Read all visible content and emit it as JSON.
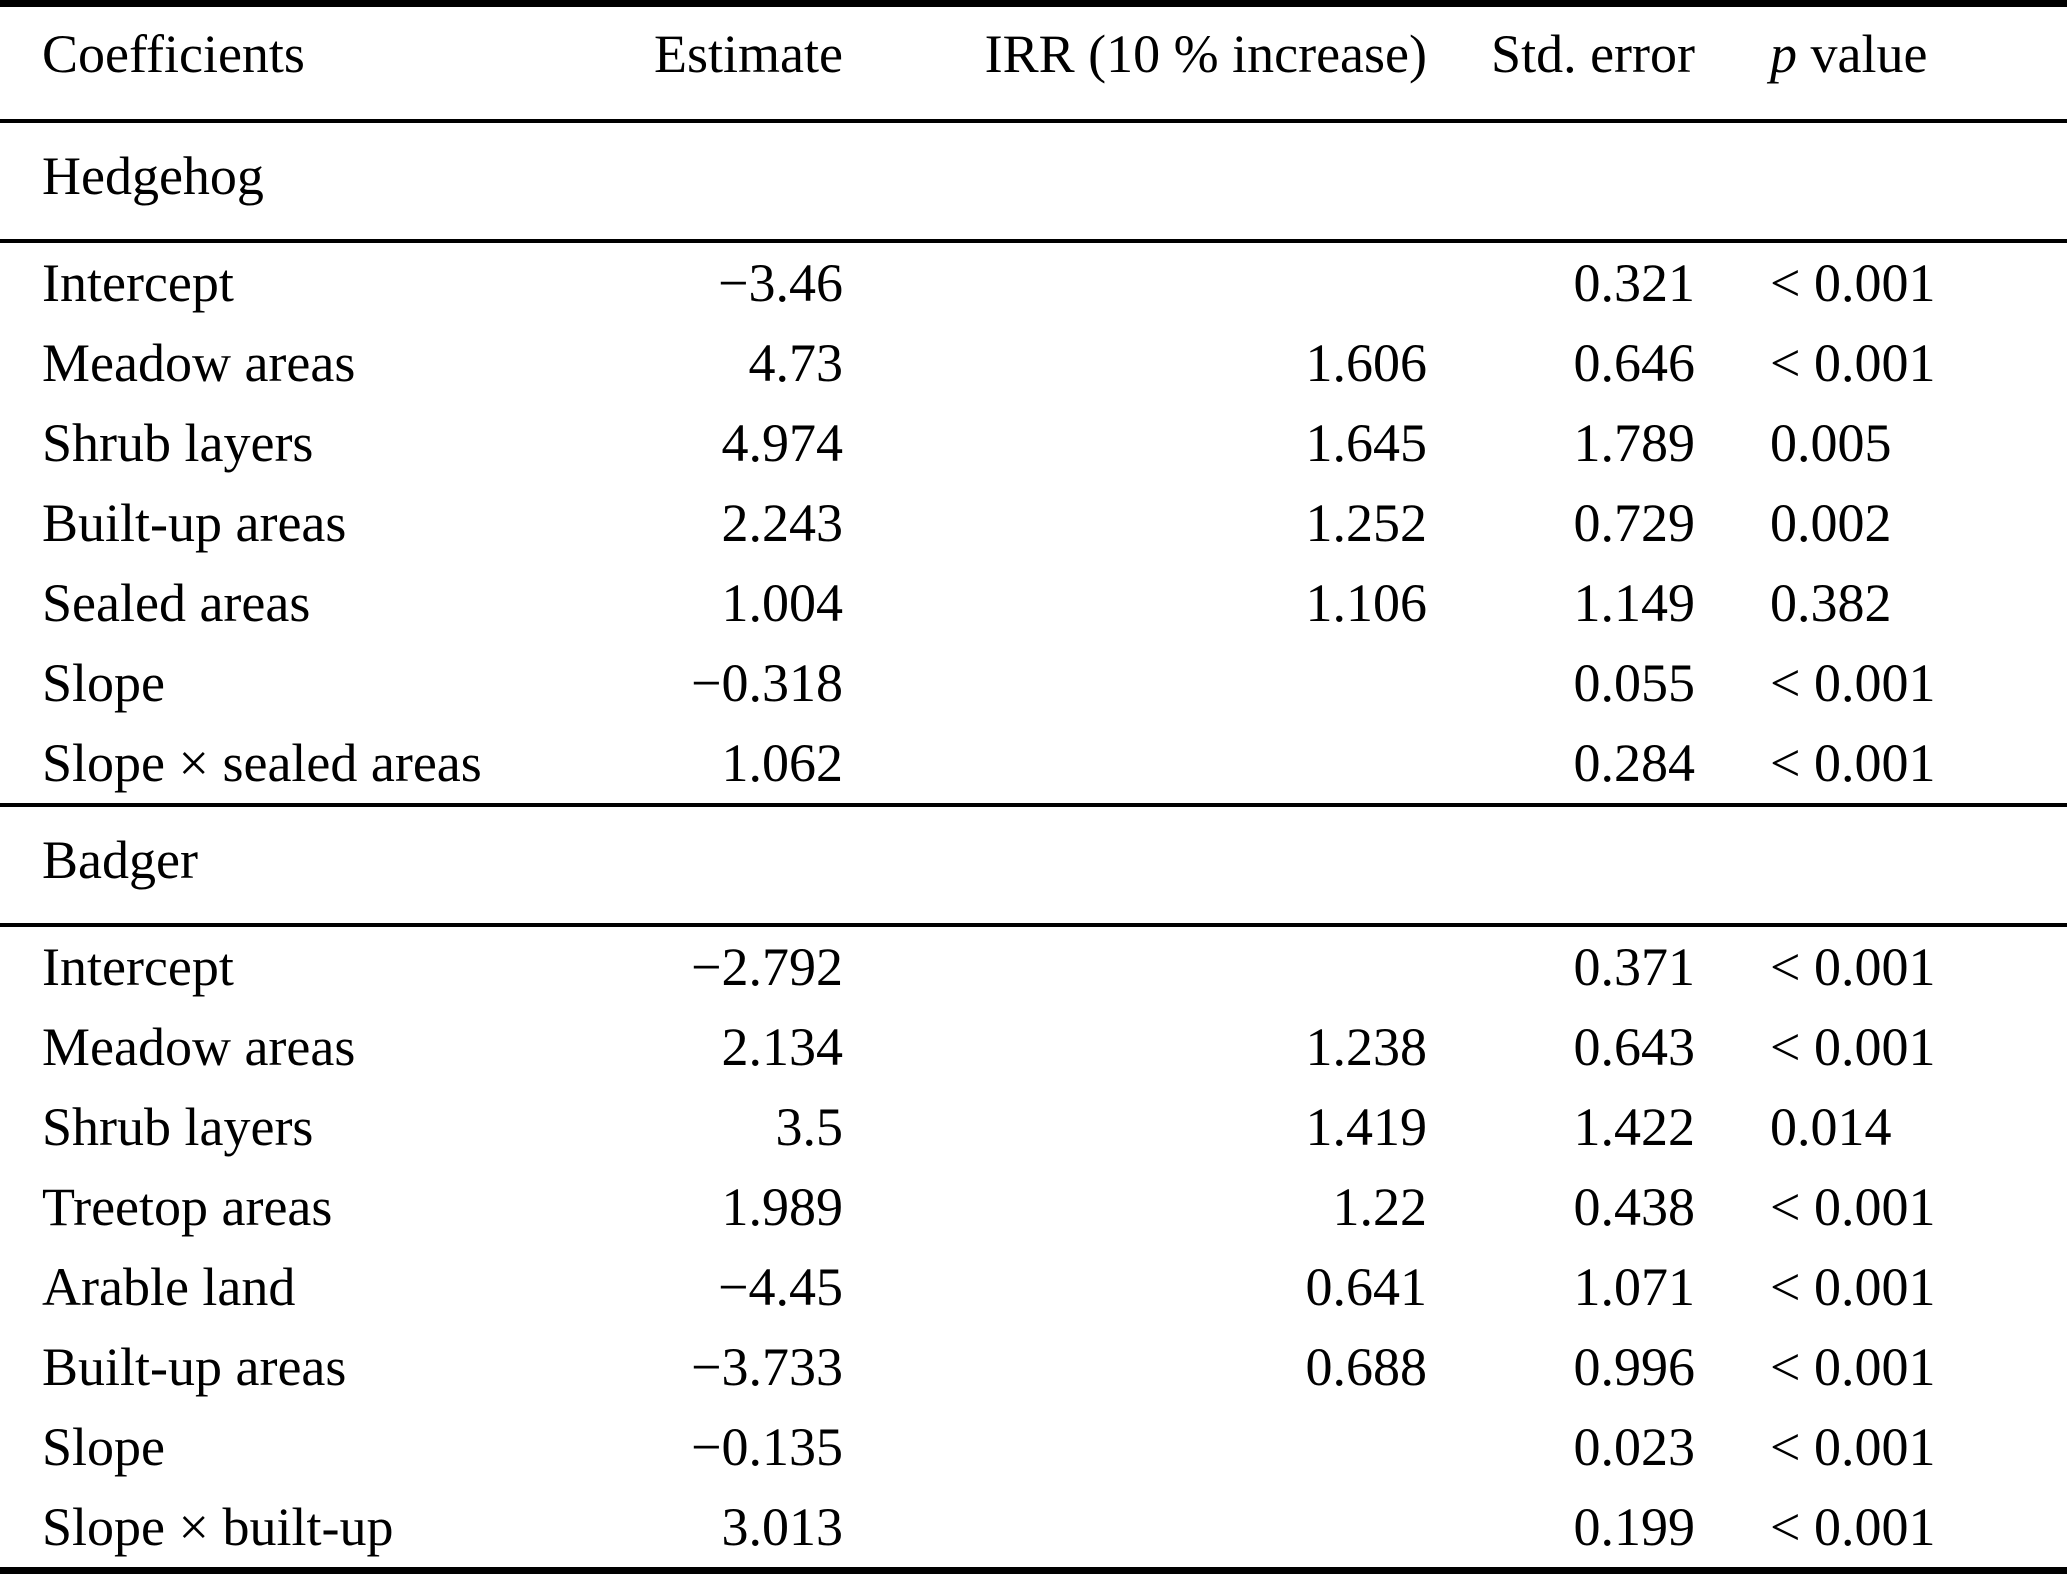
{
  "colors": {
    "background": "#ffffff",
    "text": "#000000",
    "rule": "#000000"
  },
  "chart_data": {
    "type": "table",
    "columns": [
      "Coefficients",
      "Estimate",
      "IRR (10 % increase)",
      "Std. error",
      "p value"
    ],
    "p_value_header": {
      "italic": "p",
      "rest": " value"
    },
    "sections": [
      {
        "title": "Hedgehog",
        "rows": [
          [
            "Intercept",
            "−3.46",
            "",
            "0.321",
            "< 0.001"
          ],
          [
            "Meadow areas",
            "4.73",
            "1.606",
            "0.646",
            "< 0.001"
          ],
          [
            "Shrub layers",
            "4.974",
            "1.645",
            "1.789",
            "0.005"
          ],
          [
            "Built-up areas",
            "2.243",
            "1.252",
            "0.729",
            "0.002"
          ],
          [
            "Sealed areas",
            "1.004",
            "1.106",
            "1.149",
            "0.382"
          ],
          [
            "Slope",
            "−0.318",
            "",
            "0.055",
            "< 0.001"
          ],
          [
            "Slope × sealed areas",
            "1.062",
            "",
            "0.284",
            "< 0.001"
          ]
        ]
      },
      {
        "title": "Badger",
        "rows": [
          [
            "Intercept",
            "−2.792",
            "",
            "0.371",
            "< 0.001"
          ],
          [
            "Meadow areas",
            "2.134",
            "1.238",
            "0.643",
            "< 0.001"
          ],
          [
            "Shrub layers",
            "3.5",
            "1.419",
            "1.422",
            "0.014"
          ],
          [
            "Treetop areas",
            "1.989",
            "1.22",
            "0.438",
            "< 0.001"
          ],
          [
            "Arable land",
            "−4.45",
            "0.641",
            "1.071",
            "< 0.001"
          ],
          [
            "Built-up areas",
            "−3.733",
            "0.688",
            "0.996",
            "< 0.001"
          ],
          [
            "Slope",
            "−0.135",
            "",
            "0.023",
            "< 0.001"
          ],
          [
            "Slope × built-up",
            "3.013",
            "",
            "0.199",
            "< 0.001"
          ]
        ]
      }
    ]
  }
}
